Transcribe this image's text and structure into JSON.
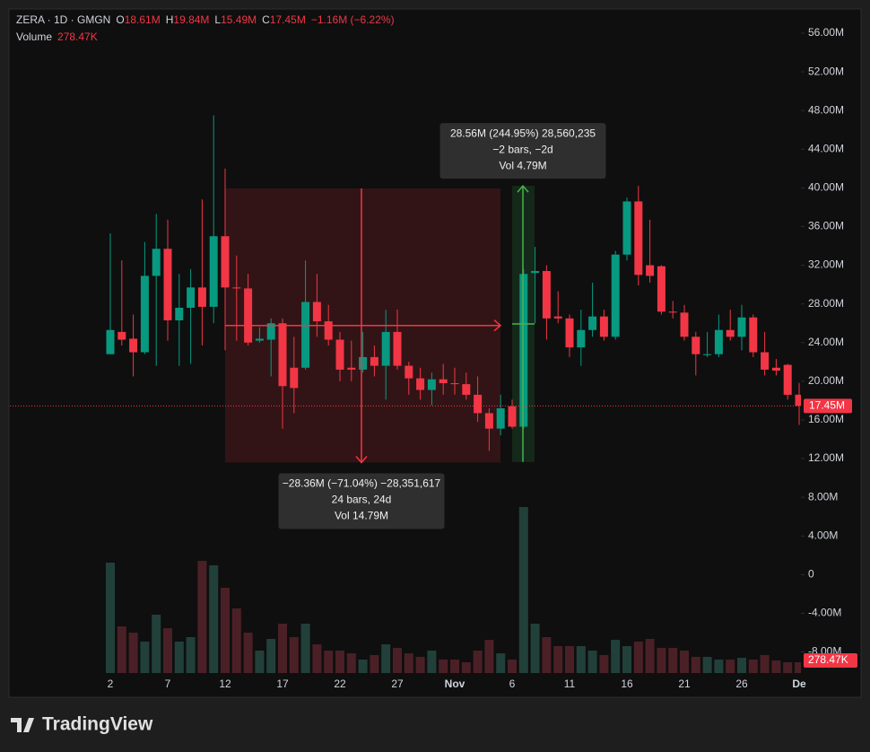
{
  "chart_data": {
    "type": "candlestick",
    "legend": {
      "symbol": "ZERA · 1D · GMGN",
      "o_key": "O",
      "o": "18.61M",
      "h_key": "H",
      "h": "19.84M",
      "l_key": "L",
      "l": "15.49M",
      "c_key": "C",
      "c": "17.45M",
      "change": "−1.16M (−6.22%)",
      "volume_key": "Volume",
      "volume": "278.47K"
    },
    "categories": [
      "2",
      null,
      null,
      null,
      null,
      "7",
      null,
      null,
      null,
      null,
      "12",
      null,
      null,
      null,
      null,
      "17",
      null,
      null,
      null,
      null,
      "22",
      null,
      null,
      null,
      null,
      "27",
      null,
      null,
      null,
      null,
      "Nov",
      null,
      null,
      null,
      null,
      "6",
      null,
      null,
      null,
      null,
      "11",
      null,
      null,
      null,
      null,
      "16",
      null,
      null,
      null,
      null,
      "21",
      null,
      null,
      null,
      null,
      "26",
      null,
      null,
      null,
      null,
      "De"
    ],
    "open": [
      22800000,
      25100000,
      24400000,
      23000000,
      30900000,
      33700000,
      26300000,
      27600000,
      29700000,
      27700000,
      35000000,
      29700000,
      29600000,
      24200000,
      24300000,
      26000000,
      21400000,
      21400000,
      28200000,
      26200000,
      24300000,
      21400000,
      21200000,
      22500000,
      21600000,
      25100000,
      21600000,
      20300000,
      19100000,
      20200000,
      19800000,
      19700000,
      18600000,
      16700000,
      15100000,
      17400000,
      15300000,
      31200000,
      31400000,
      26700000,
      26500000,
      23500000,
      25300000,
      26700000,
      24600000,
      33100000,
      38600000,
      32000000,
      31900000,
      27200000,
      27100000,
      24600000,
      22700000,
      22800000,
      25300000,
      24600000,
      26600000,
      23000000,
      21400000,
      21700000,
      18610000
    ],
    "high": [
      35300000,
      32500000,
      26900000,
      34400000,
      37300000,
      36700000,
      31100000,
      31600000,
      38800000,
      47500000,
      42000000,
      33000000,
      31100000,
      25600000,
      26500000,
      26500000,
      24600000,
      32500000,
      31100000,
      27900000,
      25100000,
      24200000,
      25100000,
      23700000,
      27400000,
      27400000,
      22000000,
      21400000,
      20900000,
      21800000,
      21400000,
      20900000,
      20500000,
      17200000,
      18600000,
      18100000,
      31600000,
      33900000,
      32000000,
      29300000,
      26900000,
      27400000,
      30200000,
      27400000,
      33500000,
      39000000,
      40200000,
      36700000,
      32000000,
      28300000,
      27900000,
      25100000,
      25100000,
      26900000,
      27400000,
      27900000,
      26900000,
      25100000,
      22300000,
      21800000,
      19840000
    ],
    "low": [
      22800000,
      23700000,
      20500000,
      22800000,
      21600000,
      24200000,
      21600000,
      21800000,
      23700000,
      26000000,
      23200000,
      24200000,
      23700000,
      24000000,
      20500000,
      15100000,
      16700000,
      21200000,
      24600000,
      23700000,
      20000000,
      20000000,
      20900000,
      20500000,
      18100000,
      21200000,
      18600000,
      18100000,
      17500000,
      18600000,
      18600000,
      18100000,
      15800000,
      12800000,
      14400000,
      15100000,
      15100000,
      26000000,
      24300000,
      26000000,
      22500000,
      21600000,
      24600000,
      24200000,
      24300000,
      32500000,
      29900000,
      30200000,
      26900000,
      26500000,
      24200000,
      20600000,
      22500000,
      22500000,
      24200000,
      23200000,
      22500000,
      20600000,
      20600000,
      18100000,
      15490000
    ],
    "close": [
      25300000,
      24300000,
      23000000,
      30900000,
      33700000,
      26300000,
      27600000,
      29700000,
      27700000,
      35000000,
      29700000,
      29600000,
      24000000,
      24400000,
      26000000,
      19500000,
      19300000,
      28200000,
      26200000,
      24300000,
      21200000,
      21200000,
      22500000,
      21600000,
      25100000,
      21600000,
      20300000,
      19100000,
      20200000,
      19800000,
      19700000,
      18600000,
      16700000,
      15100000,
      17200000,
      15300000,
      31100000,
      31400000,
      26500000,
      26500000,
      23500000,
      25300000,
      26700000,
      24600000,
      33100000,
      38600000,
      31000000,
      30900000,
      27200000,
      27100000,
      24600000,
      22800000,
      22800000,
      25300000,
      24600000,
      26600000,
      23000000,
      21200000,
      21100000,
      18600000,
      17450000
    ],
    "volume": [
      2854000,
      1206000,
      1044000,
      812000,
      1508000,
      1160000,
      812000,
      928000,
      2900000,
      2784000,
      2204000,
      1670000,
      1044000,
      580000,
      882000,
      1276000,
      928000,
      1276000,
      742000,
      580000,
      580000,
      510000,
      348000,
      464000,
      742000,
      650000,
      510000,
      418000,
      580000,
      348000,
      348000,
      278000,
      580000,
      858000,
      510000,
      348000,
      4292000,
      1276000,
      928000,
      696000,
      696000,
      696000,
      580000,
      464000,
      858000,
      696000,
      812000,
      882000,
      650000,
      650000,
      580000,
      418000,
      418000,
      348000,
      348000,
      394000,
      348000,
      464000,
      325000,
      278000,
      278470
    ],
    "up_color": "#089981",
    "down_color": "#f23645",
    "volume_up_color": "#22403a",
    "volume_down_color": "#4a2026",
    "ylim": [
      -10180000,
      58320000
    ],
    "volume_lim": [
      0,
      10000000
    ],
    "yticks": [
      {
        "value": 56000000,
        "label": "56.00M"
      },
      {
        "value": 52000000,
        "label": "52.00M"
      },
      {
        "value": 48000000,
        "label": "48.00M"
      },
      {
        "value": 44000000,
        "label": "44.00M"
      },
      {
        "value": 40000000,
        "label": "40.00M"
      },
      {
        "value": 36000000,
        "label": "36.00M"
      },
      {
        "value": 32000000,
        "label": "32.00M"
      },
      {
        "value": 28000000,
        "label": "28.00M"
      },
      {
        "value": 24000000,
        "label": "24.00M"
      },
      {
        "value": 20000000,
        "label": "20.00M"
      },
      {
        "value": 16000000,
        "label": "16.00M"
      },
      {
        "value": 12000000,
        "label": "12.00M"
      },
      {
        "value": 8000000,
        "label": "8.00M"
      },
      {
        "value": 4000000,
        "label": "4.00M"
      },
      0,
      {
        "value": -4000000,
        "label": "-4.00M"
      },
      {
        "value": -8000000,
        "label": "-8.00M"
      }
    ],
    "grid": false,
    "last_price": {
      "value": 17450000,
      "label": "17.45M"
    },
    "last_volume": {
      "value": 278470,
      "label": "278.47K"
    },
    "measurements": [
      {
        "color": "#f23645",
        "fill": "#321416",
        "from": 39940000,
        "to": 11590000,
        "lines": [
          "−28.36M (−71.04%) −28,351,617",
          "24 bars, 24d",
          "Vol 14.79M"
        ]
      },
      {
        "color": "#4caf50",
        "fill": "#15291a",
        "from": 11650000,
        "to": 40210000,
        "lines": [
          "28.56M (244.95%) 28,560,235",
          "−2 bars, −2d",
          "Vol 4.79M"
        ]
      }
    ]
  },
  "footer": {
    "brand": "TradingView"
  }
}
